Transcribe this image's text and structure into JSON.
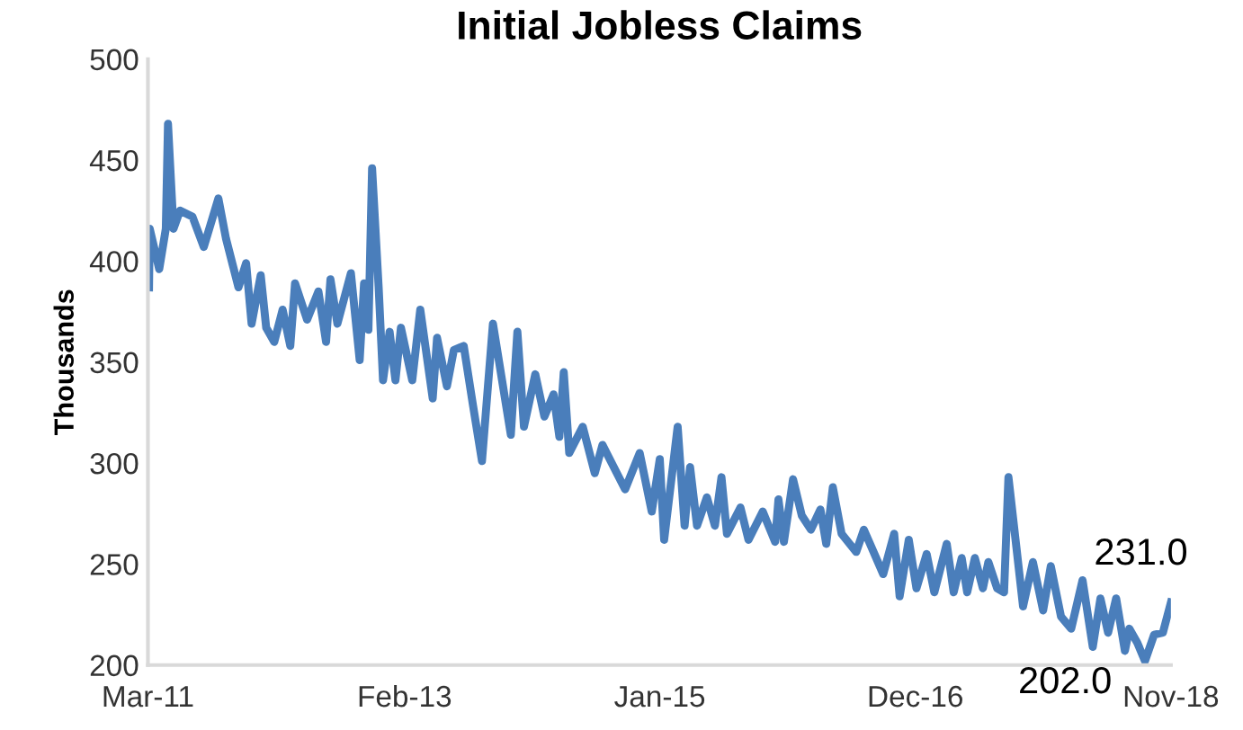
{
  "chart_data": {
    "type": "line",
    "title": "Initial Jobless Claims",
    "ylabel": "Thousands",
    "x": [
      "2011-03-04",
      "2011-03-06",
      "2011-04-01",
      "2011-04-19",
      "2011-04-25",
      "2011-05-10",
      "2011-05-28",
      "2011-07-01",
      "2011-08-01",
      "2011-09-10",
      "2011-10-01",
      "2011-11-04",
      "2011-11-25",
      "2011-12-10",
      "2012-01-04",
      "2012-01-19",
      "2012-02-10",
      "2012-03-04",
      "2012-03-25",
      "2012-04-07",
      "2012-05-10",
      "2012-06-10",
      "2012-07-01",
      "2012-07-13",
      "2012-08-01",
      "2012-09-07",
      "2012-10-01",
      "2012-10-13",
      "2012-10-25",
      "2012-11-04",
      "2012-11-22",
      "2012-12-04",
      "2012-12-22",
      "2013-01-07",
      "2013-01-22",
      "2013-02-22",
      "2013-03-16",
      "2013-04-19",
      "2013-05-01",
      "2013-05-28",
      "2013-06-16",
      "2013-07-13",
      "2013-08-07",
      "2013-09-01",
      "2013-10-01",
      "2013-11-19",
      "2013-12-07",
      "2013-12-25",
      "2014-01-25",
      "2014-02-19",
      "2014-03-16",
      "2014-04-01",
      "2014-04-13",
      "2014-04-28",
      "2014-06-04",
      "2014-07-07",
      "2014-07-28",
      "2014-09-28",
      "2014-11-07",
      "2014-12-10",
      "2015-01-01",
      "2015-01-13",
      "2015-02-19",
      "2015-03-10",
      "2015-03-25",
      "2015-04-13",
      "2015-05-10",
      "2015-06-01",
      "2015-06-19",
      "2015-07-04",
      "2015-08-10",
      "2015-09-01",
      "2015-10-10",
      "2015-11-13",
      "2015-11-22",
      "2015-12-07",
      "2016-01-01",
      "2016-01-25",
      "2016-02-19",
      "2016-03-16",
      "2016-04-01",
      "2016-04-19",
      "2016-05-13",
      "2016-06-22",
      "2016-07-13",
      "2016-09-04",
      "2016-10-04",
      "2016-10-19",
      "2016-11-13",
      "2016-12-04",
      "2017-01-01",
      "2017-01-22",
      "2017-02-25",
      "2017-03-16",
      "2017-04-07",
      "2017-04-22",
      "2017-05-13",
      "2017-06-04",
      "2017-06-19",
      "2017-07-13",
      "2017-08-01",
      "2017-08-13",
      "2017-09-04",
      "2017-09-22",
      "2017-10-19",
      "2017-11-16",
      "2017-12-07",
      "2018-01-04",
      "2018-02-01",
      "2018-03-04",
      "2018-04-01",
      "2018-04-22",
      "2018-05-13",
      "2018-06-04",
      "2018-06-28",
      "2018-07-10",
      "2018-08-01",
      "2018-08-22",
      "2018-09-16",
      "2018-10-10",
      "2018-11-01"
    ],
    "series": [
      {
        "color": "#4a7ebb",
        "values": [
          387,
          416,
          396,
          416,
          468,
          416,
          425,
          422,
          407,
          431,
          411,
          387,
          399,
          369,
          393,
          367,
          360,
          376,
          358,
          389,
          371,
          385,
          360,
          391,
          369,
          394,
          351,
          389,
          366,
          446,
          387,
          341,
          365,
          341,
          367,
          341,
          376,
          332,
          362,
          338,
          356,
          358,
          329,
          301,
          369,
          314,
          365,
          318,
          344,
          323,
          334,
          313,
          345,
          305,
          318,
          295,
          309,
          287,
          305,
          276,
          302,
          262,
          318,
          269,
          298,
          269,
          283,
          269,
          293,
          265,
          278,
          262,
          276,
          261,
          282,
          261,
          292,
          274,
          267,
          277,
          260,
          288,
          265,
          256,
          267,
          245,
          265,
          234,
          262,
          238,
          255,
          236,
          260,
          236,
          253,
          236,
          253,
          238,
          251,
          238,
          236,
          293,
          258,
          229,
          251,
          227,
          249,
          224,
          218,
          242,
          209,
          233,
          216,
          233,
          207,
          218,
          211,
          202,
          215,
          216,
          231
        ]
      }
    ],
    "xlim": [
      "2011-03-01",
      "2018-11-01"
    ],
    "xticks": [
      {
        "value": "2011-03-01",
        "label": "Mar-11"
      },
      {
        "value": "2013-02-01",
        "label": "Feb-13"
      },
      {
        "value": "2015-01-01",
        "label": "Jan-15"
      },
      {
        "value": "2016-12-01",
        "label": "Dec-16"
      },
      {
        "value": "2018-11-01",
        "label": "Nov-18"
      }
    ],
    "ylim": [
      200,
      500
    ],
    "yticks": [
      200,
      250,
      300,
      350,
      400,
      450,
      500
    ],
    "annotations": [
      {
        "text": "231.0",
        "x": "2018-11-01",
        "y": 231
      },
      {
        "text": "202.0",
        "x": "2018-08-22",
        "y": 202
      }
    ],
    "grid": false,
    "line_style": "solid",
    "marker": "none"
  }
}
